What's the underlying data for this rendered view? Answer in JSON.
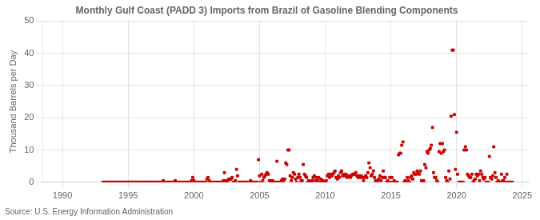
{
  "chart_data": {
    "type": "scatter",
    "title": "Monthly Gulf Coast (PADD 3) Imports from Brazil of Gasoline Blending Components",
    "ylabel": "Thousand Barrels per Day",
    "source": "Source: U.S. Energy Information Administration",
    "color": "#cc0000",
    "marker": "square",
    "grid": true,
    "xlim": [
      1988.5,
      2025.5
    ],
    "xticks": [
      1990,
      1995,
      2000,
      2005,
      2010,
      2015,
      2020,
      2025
    ],
    "ylim": [
      0,
      50
    ],
    "yticks": [
      0,
      10,
      20,
      30,
      40,
      50
    ],
    "x": [
      1993.08,
      1993.17,
      1993.25,
      1993.33,
      1993.42,
      1993.5,
      1993.58,
      1993.67,
      1993.75,
      1993.83,
      1993.92,
      1994.0,
      1994.08,
      1994.17,
      1994.25,
      1994.33,
      1994.42,
      1994.5,
      1994.58,
      1994.67,
      1994.75,
      1994.83,
      1994.92,
      1995.0,
      1995.08,
      1995.17,
      1995.25,
      1995.33,
      1995.42,
      1995.5,
      1995.58,
      1995.67,
      1995.75,
      1995.83,
      1995.92,
      1996.0,
      1996.08,
      1996.17,
      1996.25,
      1996.33,
      1996.42,
      1996.5,
      1996.58,
      1996.67,
      1996.75,
      1996.83,
      1996.92,
      1997.0,
      1997.08,
      1997.17,
      1997.25,
      1997.33,
      1997.42,
      1997.5,
      1997.58,
      1997.67,
      1997.75,
      1997.83,
      1997.92,
      1998.0,
      1998.08,
      1998.17,
      1998.25,
      1998.33,
      1998.42,
      1998.5,
      1998.58,
      1998.67,
      1998.75,
      1998.83,
      1998.92,
      1999.0,
      1999.08,
      1999.17,
      1999.25,
      1999.33,
      1999.42,
      1999.5,
      1999.58,
      1999.67,
      1999.75,
      1999.83,
      1999.92,
      2000.0,
      2000.08,
      2000.17,
      2000.25,
      2000.33,
      2000.42,
      2000.5,
      2000.58,
      2000.67,
      2000.75,
      2000.83,
      2000.92,
      2001.0,
      2001.08,
      2001.17,
      2001.25,
      2001.33,
      2001.42,
      2001.5,
      2001.58,
      2001.67,
      2001.75,
      2001.83,
      2001.92,
      2002.0,
      2002.08,
      2002.17,
      2002.25,
      2002.33,
      2002.42,
      2002.5,
      2002.58,
      2002.67,
      2002.75,
      2002.83,
      2002.92,
      2003.0,
      2003.08,
      2003.17,
      2003.25,
      2003.33,
      2003.42,
      2003.5,
      2003.58,
      2003.67,
      2003.75,
      2003.83,
      2003.92,
      2004.0,
      2004.08,
      2004.17,
      2004.25,
      2004.33,
      2004.42,
      2004.5,
      2004.58,
      2004.67,
      2004.75,
      2004.83,
      2004.92,
      2005.0,
      2005.08,
      2005.17,
      2005.25,
      2005.33,
      2005.42,
      2005.5,
      2005.58,
      2005.67,
      2005.75,
      2005.83,
      2005.92,
      2006.0,
      2006.08,
      2006.17,
      2006.25,
      2006.33,
      2006.42,
      2006.5,
      2006.58,
      2006.67,
      2006.75,
      2006.83,
      2006.92,
      2007.0,
      2007.08,
      2007.17,
      2007.25,
      2007.33,
      2007.42,
      2007.5,
      2007.58,
      2007.67,
      2007.75,
      2007.83,
      2007.92,
      2008.0,
      2008.08,
      2008.17,
      2008.25,
      2008.33,
      2008.42,
      2008.5,
      2008.58,
      2008.67,
      2008.75,
      2008.83,
      2008.92,
      2009.0,
      2009.08,
      2009.17,
      2009.25,
      2009.33,
      2009.42,
      2009.5,
      2009.58,
      2009.67,
      2009.75,
      2009.83,
      2009.92,
      2010.0,
      2010.08,
      2010.17,
      2010.25,
      2010.33,
      2010.42,
      2010.5,
      2010.58,
      2010.67,
      2010.75,
      2010.83,
      2010.92,
      2011.0,
      2011.08,
      2011.17,
      2011.25,
      2011.33,
      2011.42,
      2011.5,
      2011.58,
      2011.67,
      2011.75,
      2011.83,
      2011.92,
      2012.0,
      2012.08,
      2012.17,
      2012.25,
      2012.33,
      2012.42,
      2012.5,
      2012.58,
      2012.67,
      2012.75,
      2012.83,
      2012.92,
      2013.0,
      2013.08,
      2013.17,
      2013.25,
      2013.33,
      2013.42,
      2013.5,
      2013.58,
      2013.67,
      2013.75,
      2013.83,
      2013.92,
      2014.0,
      2014.08,
      2014.17,
      2014.25,
      2014.33,
      2014.42,
      2014.5,
      2014.58,
      2014.67,
      2014.75,
      2014.83,
      2014.92,
      2015.0,
      2015.08,
      2015.17,
      2015.25,
      2015.33,
      2015.42,
      2015.5,
      2015.58,
      2015.67,
      2015.75,
      2015.83,
      2015.92,
      2016.0,
      2016.08,
      2016.17,
      2016.25,
      2016.33,
      2016.42,
      2016.5,
      2016.58,
      2016.67,
      2016.75,
      2016.83,
      2016.92,
      2017.0,
      2017.08,
      2017.17,
      2017.25,
      2017.33,
      2017.42,
      2017.5,
      2017.58,
      2017.67,
      2017.75,
      2017.83,
      2017.92,
      2018.0,
      2018.08,
      2018.17,
      2018.25,
      2018.33,
      2018.42,
      2018.5,
      2018.58,
      2018.67,
      2018.75,
      2018.83,
      2018.92,
      2019.0,
      2019.08,
      2019.17,
      2019.25,
      2019.33,
      2019.42,
      2019.5,
      2019.58,
      2019.67,
      2019.75,
      2019.83,
      2019.92,
      2020.0,
      2020.08,
      2020.17,
      2020.25,
      2020.33,
      2020.42,
      2020.5,
      2020.58,
      2020.67,
      2020.75,
      2020.83,
      2020.92,
      2021.0,
      2021.08,
      2021.17,
      2021.25,
      2021.33,
      2021.42,
      2021.5,
      2021.58,
      2021.67,
      2021.75,
      2021.83,
      2021.92,
      2022.0,
      2022.08,
      2022.17,
      2022.25,
      2022.33,
      2022.42,
      2022.5,
      2022.58,
      2022.67,
      2022.75,
      2022.83,
      2022.92,
      2023.0,
      2023.08,
      2023.17,
      2023.25,
      2023.33,
      2023.42,
      2023.5,
      2023.58,
      2023.67,
      2023.75,
      2023.83,
      2023.92,
      2024.0,
      2024.08,
      2024.17,
      2024.25
    ],
    "values": [
      0,
      0,
      0,
      0,
      0,
      0,
      0,
      0,
      0,
      0,
      0,
      0,
      0,
      0,
      0,
      0,
      0,
      0,
      0,
      0,
      0,
      0,
      0,
      0,
      0,
      0,
      0,
      0,
      0,
      0,
      0,
      0,
      0,
      0,
      0,
      0,
      0,
      0,
      0,
      0,
      0,
      0,
      0,
      0,
      0,
      0,
      0,
      0,
      0,
      0,
      0,
      0,
      0,
      0,
      0,
      0.5,
      0,
      0,
      0,
      0,
      0,
      0,
      0,
      0,
      0,
      0,
      0.5,
      0,
      0,
      0,
      0,
      0,
      0,
      0,
      0,
      0,
      0,
      0,
      0,
      0,
      0,
      0.5,
      1.5,
      0.5,
      0,
      0,
      0,
      0,
      0,
      0,
      0,
      0,
      0,
      0,
      0,
      1.0,
      1.5,
      0.5,
      0,
      0,
      0,
      0,
      0,
      0,
      0,
      0,
      0,
      0,
      0,
      0,
      0.5,
      3.0,
      0.5,
      0,
      0.5,
      1.0,
      1.0,
      1.0,
      1.5,
      0,
      0,
      0.5,
      4.0,
      2.0,
      0,
      0,
      0,
      0,
      0,
      0,
      0,
      0,
      0,
      0,
      0,
      0.5,
      0,
      0,
      0,
      0,
      0,
      0,
      7.0,
      2.0,
      0,
      2.5,
      0.5,
      1.5,
      2.0,
      2.5,
      3.0,
      2.5,
      0.5,
      0.5,
      0,
      0.5,
      0,
      0,
      0,
      6.5,
      0,
      0,
      0,
      0.5,
      1.0,
      0.5,
      1.0,
      6.0,
      5.5,
      10.0,
      10.0,
      2.0,
      0.5,
      1.5,
      3.0,
      2.5,
      1.0,
      0,
      1.5,
      2.5,
      1.5,
      0.5,
      0.5,
      5.5,
      2.5,
      2.0,
      1.5,
      0,
      0.5,
      0,
      0,
      0.5,
      1.5,
      2.0,
      0.5,
      1.5,
      0.5,
      1.5,
      0,
      1.0,
      0.5,
      0.5,
      0,
      0,
      0.5,
      2.0,
      2.5,
      1.5,
      2.5,
      2.0,
      2.5,
      3.0,
      3.5,
      1.5,
      1.0,
      2.0,
      1.5,
      3.0,
      3.5,
      2.0,
      2.5,
      2.0,
      2.5,
      1.5,
      2.0,
      2.0,
      1.5,
      2.0,
      2.5,
      2.5,
      2.5,
      3.0,
      2.0,
      1.5,
      2.0,
      1.5,
      2.0,
      1.5,
      0.5,
      1.5,
      2.0,
      1.5,
      3.0,
      6.0,
      4.5,
      2.0,
      2.5,
      3.5,
      1.5,
      0.5,
      0,
      0.5,
      1.0,
      2.0,
      0.5,
      1.5,
      3.5,
      1.5,
      1.5,
      0,
      0.5,
      0,
      1.5,
      0,
      1.5,
      0,
      0.5,
      0,
      0,
      0,
      8.5,
      9.0,
      9.0,
      11.5,
      12.5,
      0,
      0.5,
      0,
      1.5,
      0.5,
      0,
      1.5,
      2.0,
      1.0,
      3.0,
      2.5,
      2.5,
      3.5,
      3.0,
      2.5,
      3.5,
      0.5,
      0,
      0.5,
      5.5,
      4.5,
      9.5,
      9.0,
      10.0,
      10.5,
      11.5,
      17.0,
      3.0,
      1.5,
      1.5,
      0.5,
      0,
      9.5,
      12.0,
      9.0,
      12.0,
      9.5,
      10.0,
      1.5,
      0.5,
      0,
      3.5,
      1.0,
      20.5,
      41.0,
      41.0,
      21.0,
      4.0,
      15.5,
      2.5,
      0,
      0,
      0,
      0,
      0,
      10.0,
      11.0,
      10.0,
      2.5,
      2.0,
      1.5,
      1.5,
      2.5,
      0,
      0.5,
      1.0,
      2.5,
      2.0,
      2.5,
      0.5,
      3.5,
      2.5,
      1.5,
      1.0,
      1.5,
      0,
      0,
      0,
      8.0,
      1.5,
      1.0,
      2.0,
      11.0,
      3.0,
      1.5,
      0,
      0.5,
      0,
      0,
      2.5,
      0.5,
      0.5,
      1.5,
      0,
      2.5,
      0,
      0,
      0,
      0,
      0
    ]
  }
}
